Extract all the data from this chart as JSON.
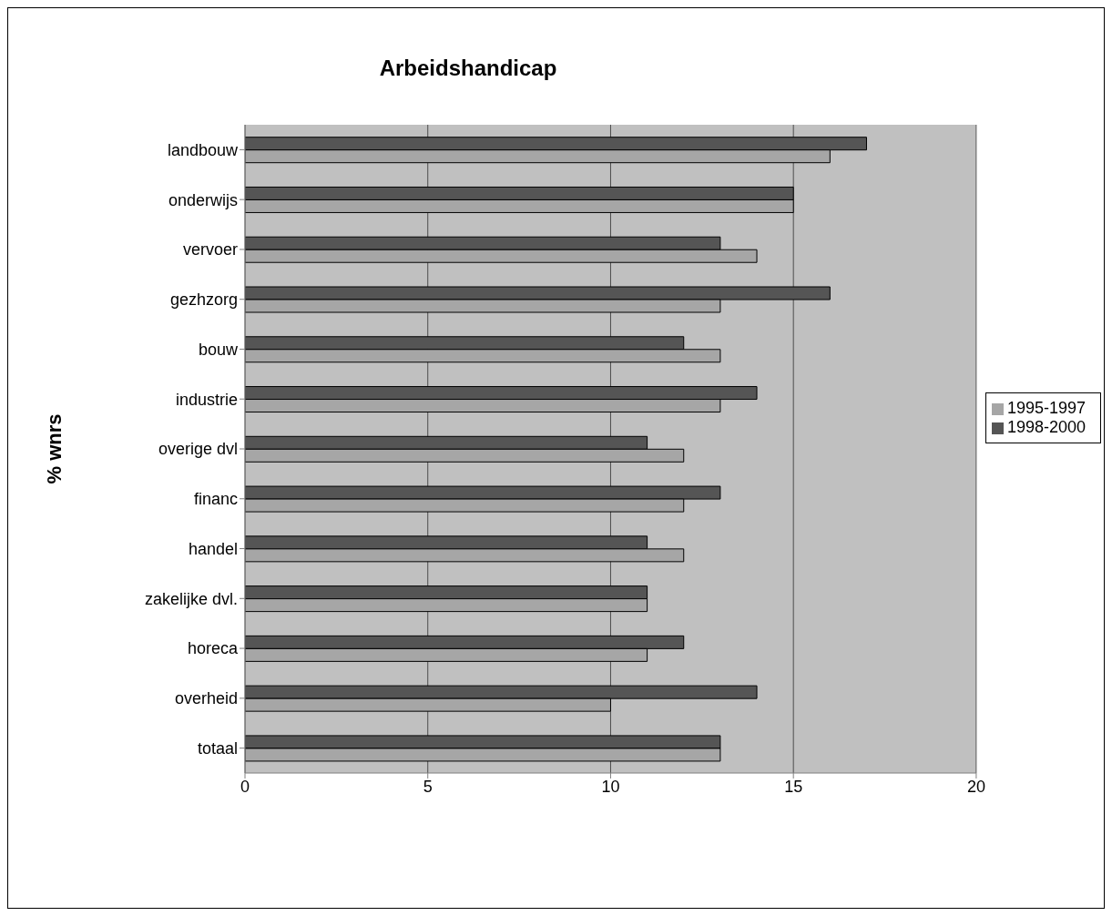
{
  "chart_data": {
    "type": "bar",
    "orientation": "horizontal",
    "title": "Arbeidshandicap",
    "ylabel": "% wnrs",
    "categories": [
      "landbouw",
      "onderwijs",
      "vervoer",
      "gezhzorg",
      "bouw",
      "industrie",
      "overige dvl",
      "financ",
      "handel",
      "zakelijke dvl.",
      "horeca",
      "overheid",
      "totaal"
    ],
    "series": [
      {
        "name": "1998-2000",
        "color": "#555555",
        "values": [
          17,
          15,
          13,
          16,
          12,
          14,
          11,
          13,
          11,
          11,
          12,
          14,
          13
        ]
      },
      {
        "name": "1995-1997",
        "color": "#a6a6a6",
        "values": [
          16,
          15,
          14,
          13,
          13,
          13,
          12,
          12,
          12,
          11,
          11,
          10,
          13
        ]
      }
    ],
    "xlim": [
      0,
      20
    ],
    "xticks": [
      0,
      5,
      10,
      15,
      20
    ],
    "grid": "x",
    "legend": "right"
  }
}
